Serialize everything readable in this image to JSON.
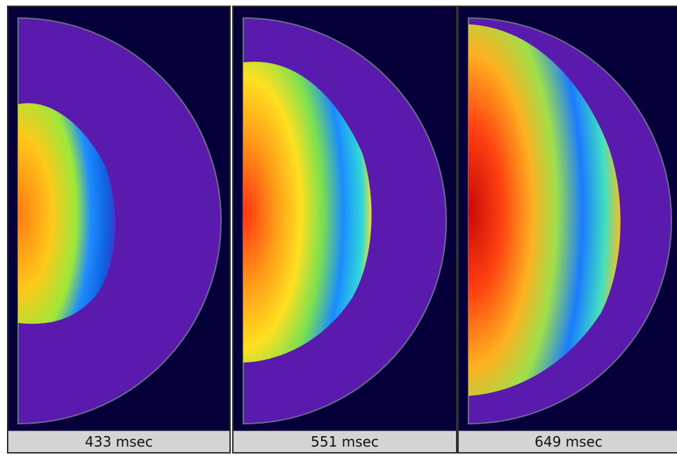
{
  "panels": [
    {
      "label": "433 msec"
    },
    {
      "label": "551 msec"
    },
    {
      "label": "649 msec"
    }
  ]
}
